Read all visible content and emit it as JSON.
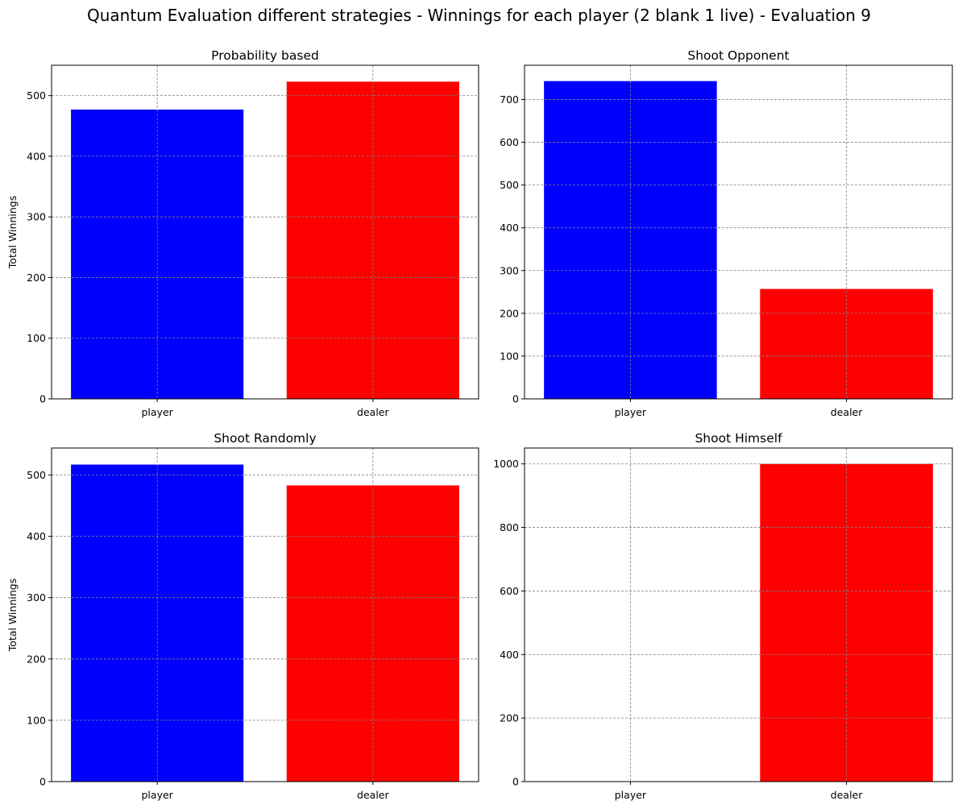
{
  "figure": {
    "suptitle": "Quantum Evaluation different strategies - Winnings for each player (2 blank 1 live) - Evaluation 9"
  },
  "chart_data": [
    {
      "type": "bar",
      "title": "Probability based",
      "categories": [
        "player",
        "dealer"
      ],
      "values": [
        477,
        523
      ],
      "colors": [
        "#0000ff",
        "#ff0000"
      ],
      "xlabel": "",
      "ylabel": "Total Winnings",
      "ylim": [
        0,
        550
      ],
      "yticks": [
        0,
        100,
        200,
        300,
        400,
        500
      ],
      "grid": true
    },
    {
      "type": "bar",
      "title": "Shoot Opponent",
      "categories": [
        "player",
        "dealer"
      ],
      "values": [
        743,
        257
      ],
      "colors": [
        "#0000ff",
        "#ff0000"
      ],
      "xlabel": "",
      "ylabel": "",
      "ylim": [
        0,
        780
      ],
      "yticks": [
        0,
        100,
        200,
        300,
        400,
        500,
        600,
        700
      ],
      "grid": true
    },
    {
      "type": "bar",
      "title": "Shoot Randomly",
      "categories": [
        "player",
        "dealer"
      ],
      "values": [
        517,
        483
      ],
      "colors": [
        "#0000ff",
        "#ff0000"
      ],
      "xlabel": "",
      "ylabel": "Total Winnings",
      "ylim": [
        0,
        544
      ],
      "yticks": [
        0,
        100,
        200,
        300,
        400,
        500
      ],
      "grid": true
    },
    {
      "type": "bar",
      "title": "Shoot Himself",
      "categories": [
        "player",
        "dealer"
      ],
      "values": [
        0,
        1000
      ],
      "colors": [
        "#0000ff",
        "#ff0000"
      ],
      "xlabel": "",
      "ylabel": "",
      "ylim": [
        0,
        1050
      ],
      "yticks": [
        0,
        200,
        400,
        600,
        800,
        1000
      ],
      "grid": true
    }
  ]
}
